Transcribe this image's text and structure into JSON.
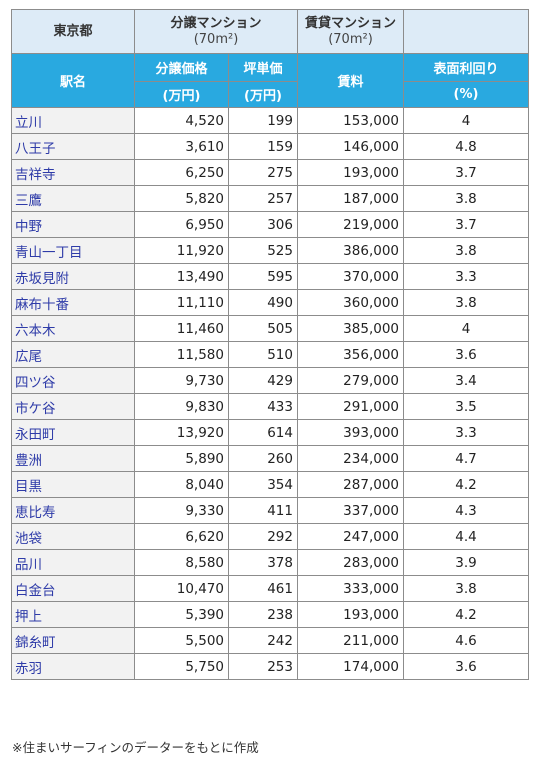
{
  "header": {
    "region": "東京都",
    "bunjo": "分譲マンション",
    "bunjo_size": "(70m²)",
    "chintai": "賃貸マンション",
    "chintai_size": "(70m²)",
    "station": "駅名",
    "price": "分譲価格",
    "tsubo": "坪単価",
    "rent": "賃料",
    "yield": "表面利回り",
    "price_unit": "(万円)",
    "tsubo_unit": "(万円)",
    "yield_unit": "(%)"
  },
  "rows": [
    {
      "station": "立川",
      "price": "4,520",
      "tsubo": "199",
      "rent": "153,000",
      "yield": "4"
    },
    {
      "station": "八王子",
      "price": "3,610",
      "tsubo": "159",
      "rent": "146,000",
      "yield": "4.8"
    },
    {
      "station": "吉祥寺",
      "price": "6,250",
      "tsubo": "275",
      "rent": "193,000",
      "yield": "3.7"
    },
    {
      "station": "三鷹",
      "price": "5,820",
      "tsubo": "257",
      "rent": "187,000",
      "yield": "3.8"
    },
    {
      "station": "中野",
      "price": "6,950",
      "tsubo": "306",
      "rent": "219,000",
      "yield": "3.7"
    },
    {
      "station": "青山一丁目",
      "price": "11,920",
      "tsubo": "525",
      "rent": "386,000",
      "yield": "3.8"
    },
    {
      "station": "赤坂見附",
      "price": "13,490",
      "tsubo": "595",
      "rent": "370,000",
      "yield": "3.3"
    },
    {
      "station": "麻布十番",
      "price": "11,110",
      "tsubo": "490",
      "rent": "360,000",
      "yield": "3.8"
    },
    {
      "station": "六本木",
      "price": "11,460",
      "tsubo": "505",
      "rent": "385,000",
      "yield": "4"
    },
    {
      "station": "広尾",
      "price": "11,580",
      "tsubo": "510",
      "rent": "356,000",
      "yield": "3.6"
    },
    {
      "station": "四ツ谷",
      "price": "9,730",
      "tsubo": "429",
      "rent": "279,000",
      "yield": "3.4"
    },
    {
      "station": "市ケ谷",
      "price": "9,830",
      "tsubo": "433",
      "rent": "291,000",
      "yield": "3.5"
    },
    {
      "station": "永田町",
      "price": "13,920",
      "tsubo": "614",
      "rent": "393,000",
      "yield": "3.3"
    },
    {
      "station": "豊洲",
      "price": "5,890",
      "tsubo": "260",
      "rent": "234,000",
      "yield": "4.7"
    },
    {
      "station": "目黒",
      "price": "8,040",
      "tsubo": "354",
      "rent": "287,000",
      "yield": "4.2"
    },
    {
      "station": "恵比寿",
      "price": "9,330",
      "tsubo": "411",
      "rent": "337,000",
      "yield": "4.3"
    },
    {
      "station": "池袋",
      "price": "6,620",
      "tsubo": "292",
      "rent": "247,000",
      "yield": "4.4"
    },
    {
      "station": "品川",
      "price": "8,580",
      "tsubo": "378",
      "rent": "283,000",
      "yield": "3.9"
    },
    {
      "station": "白金台",
      "price": "10,470",
      "tsubo": "461",
      "rent": "333,000",
      "yield": "3.8"
    },
    {
      "station": "押上",
      "price": "5,390",
      "tsubo": "238",
      "rent": "193,000",
      "yield": "4.2"
    },
    {
      "station": "錦糸町",
      "price": "5,500",
      "tsubo": "242",
      "rent": "211,000",
      "yield": "4.6"
    },
    {
      "station": "赤羽",
      "price": "5,750",
      "tsubo": "253",
      "rent": "174,000",
      "yield": "3.6"
    }
  ],
  "note": "※住まいサーフィンのデーターをもとに作成"
}
